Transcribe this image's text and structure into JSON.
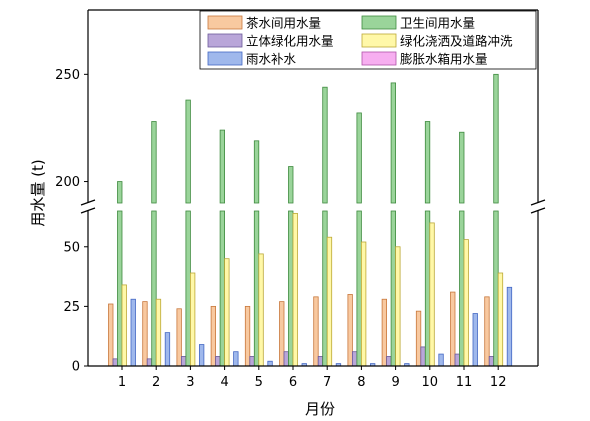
{
  "chart_data": {
    "type": "bar",
    "xlabel": "月份",
    "ylabel": "用水量 (t)",
    "categories": [
      "1",
      "2",
      "3",
      "4",
      "5",
      "6",
      "7",
      "8",
      "9",
      "10",
      "11",
      "12"
    ],
    "axis_break": {
      "lower_range": [
        0,
        65
      ],
      "upper_range": [
        190,
        280
      ]
    },
    "y_ticks_lower": [
      0,
      25,
      50
    ],
    "y_ticks_upper": [
      200,
      250
    ],
    "legend_position": "top-right",
    "grid": false,
    "series": [
      {
        "name": "茶水间用水量",
        "color": "#F8C9A0",
        "stroke": "#C8783C",
        "values": [
          26,
          27,
          24,
          25,
          25,
          27,
          29,
          30,
          28,
          23,
          31,
          29
        ]
      },
      {
        "name": "立体绿化用水量",
        "color": "#B9A6D9",
        "stroke": "#6B5A99",
        "values": [
          3,
          3,
          4,
          4,
          4,
          6,
          4,
          6,
          4,
          8,
          5,
          4
        ]
      },
      {
        "name": "雨水补水",
        "color": "#9FB8EC",
        "stroke": "#4367C4",
        "values": [
          28,
          14,
          9,
          6,
          2,
          1,
          1,
          1,
          1,
          5,
          22,
          33
        ]
      },
      {
        "name": "卫生间用水量",
        "color": "#9AD49A",
        "stroke": "#3E8A3E",
        "values": [
          200,
          228,
          238,
          224,
          219,
          207,
          244,
          232,
          246,
          228,
          223,
          250
        ]
      },
      {
        "name": "绿化浇洒及道路冲洗",
        "color": "#FFF8A8",
        "stroke": "#BCA836",
        "values": [
          34,
          28,
          39,
          45,
          47,
          64,
          54,
          52,
          50,
          60,
          53,
          39
        ]
      },
      {
        "name": "膨胀水箱用水量",
        "color": "#F7AEF0",
        "stroke": "#B052A8",
        "values": [
          0,
          0,
          0,
          0,
          0,
          0,
          0,
          0,
          0,
          0,
          0,
          0
        ]
      }
    ]
  }
}
